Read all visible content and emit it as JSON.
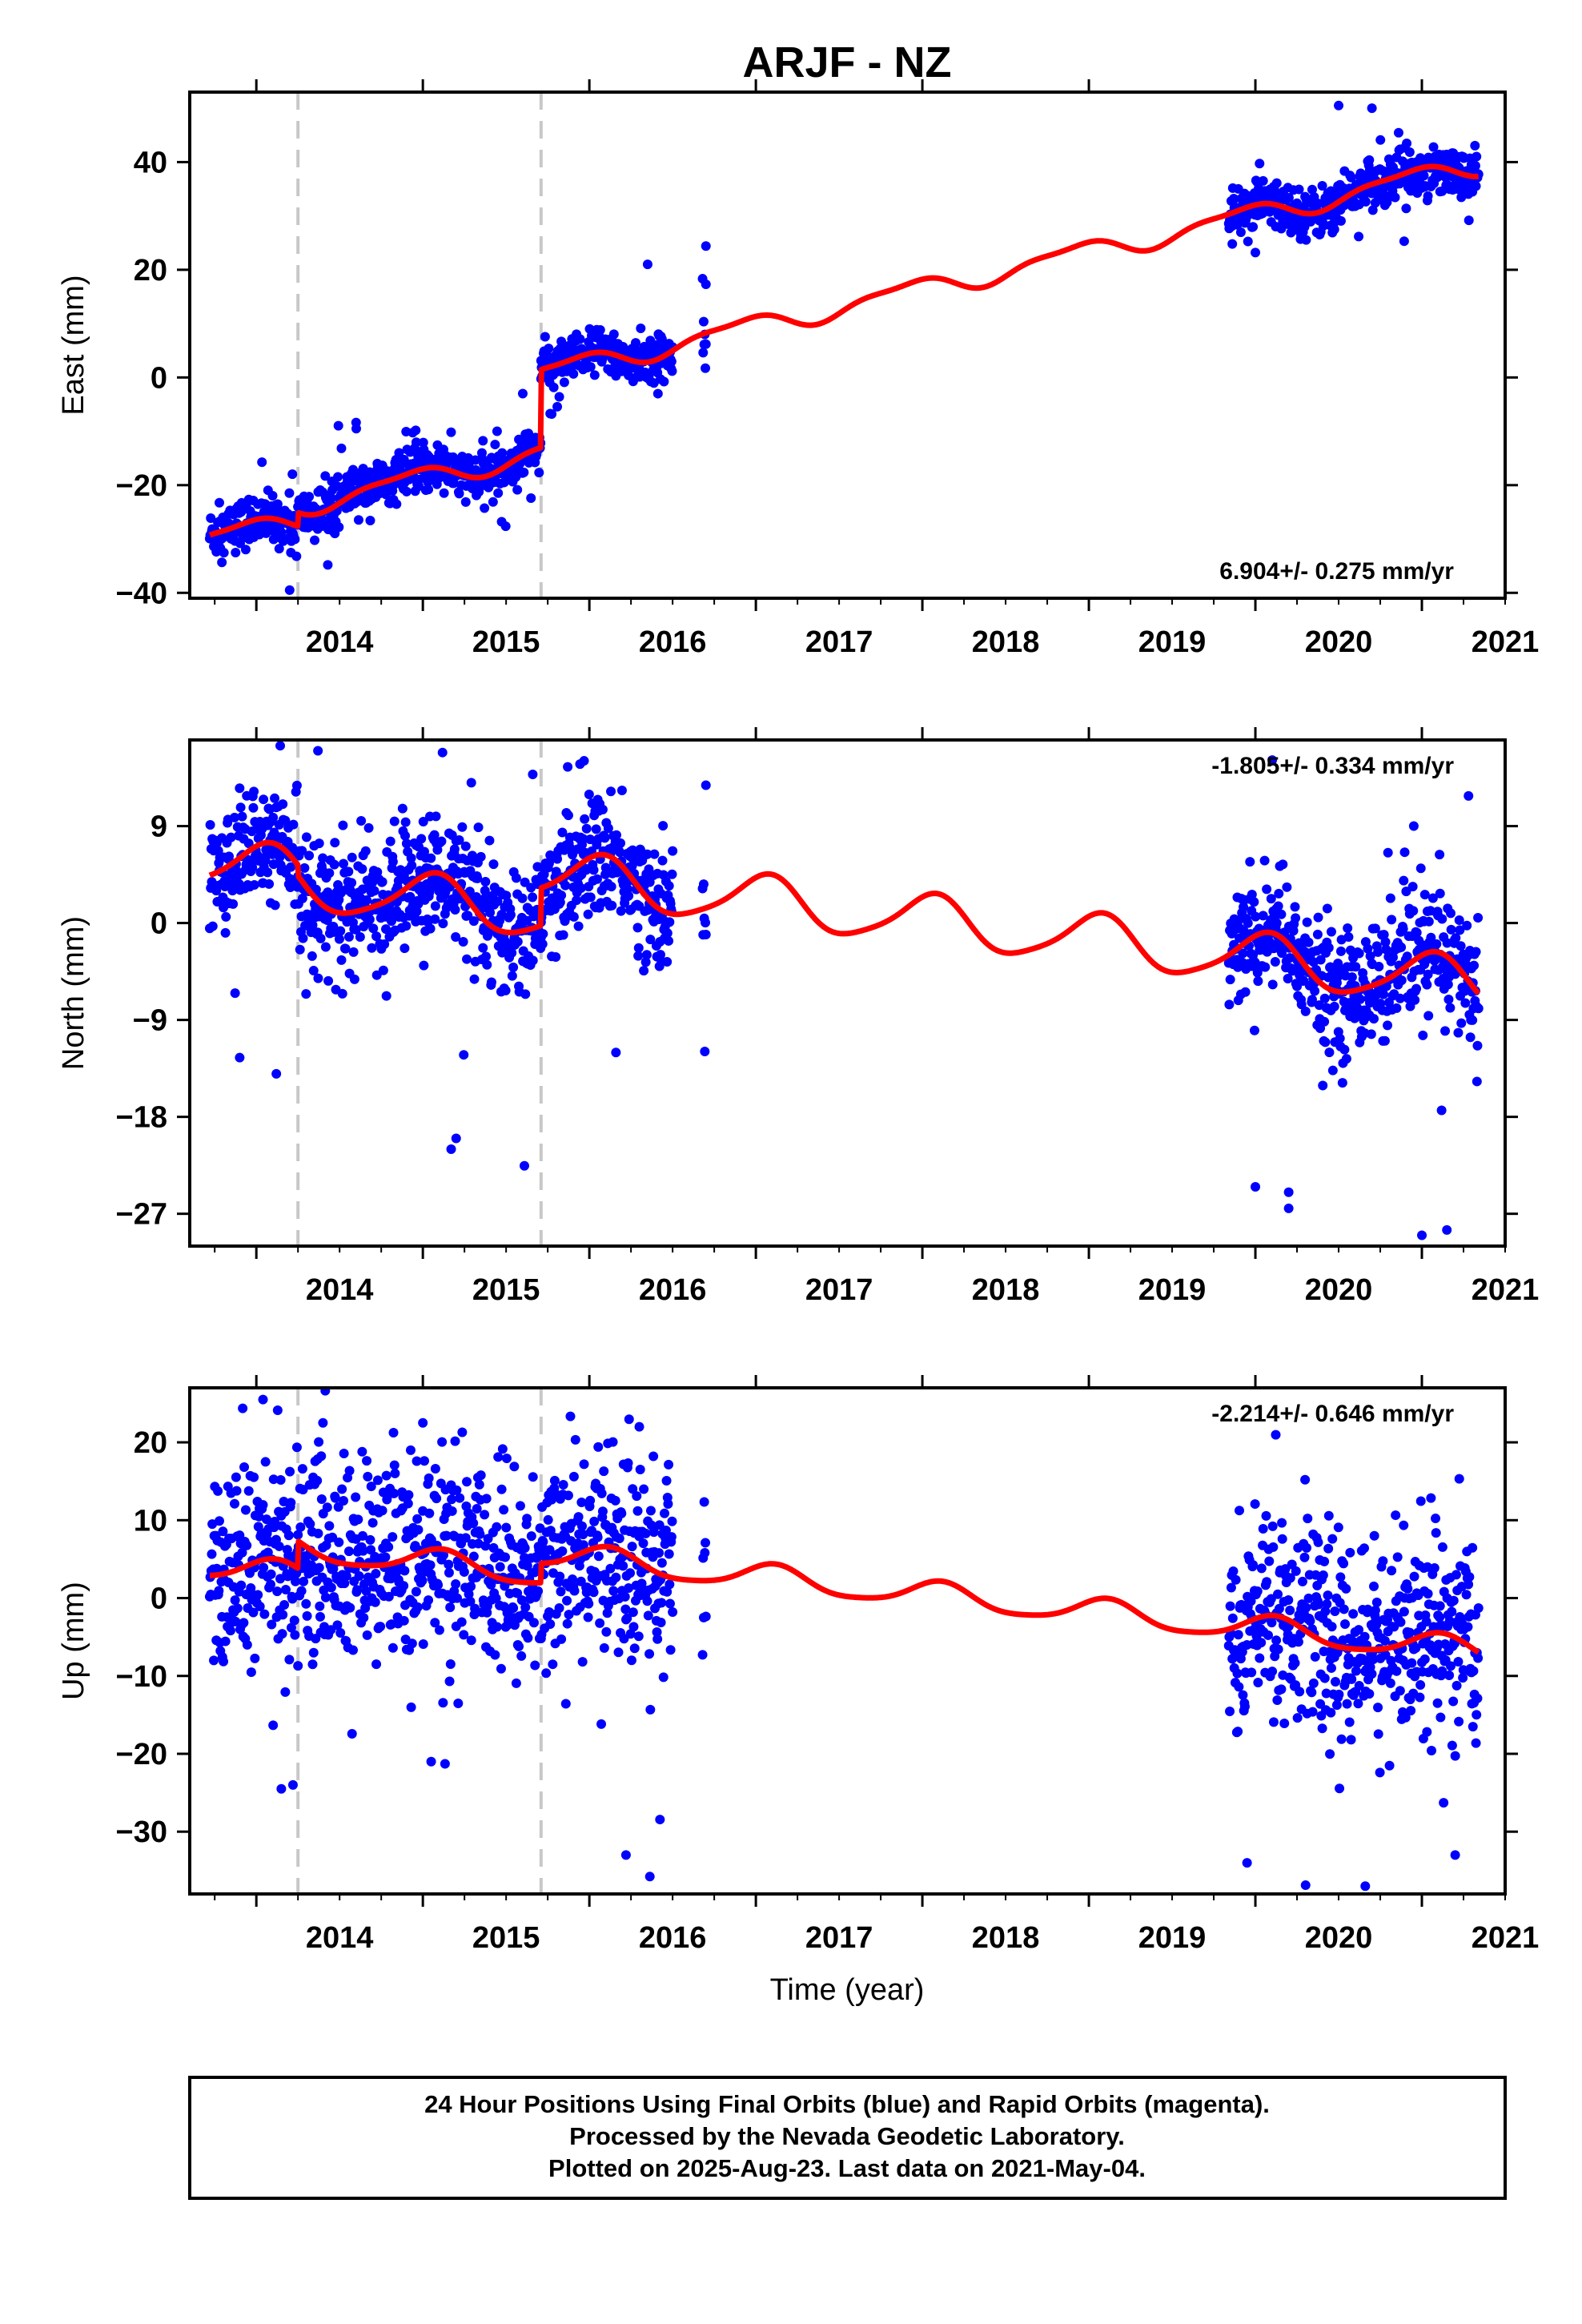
{
  "title": "ARJF - NZ",
  "colors": {
    "points": "#0000ff",
    "model": "#ff0000",
    "steps": "#c8c8c8",
    "frame": "#000000"
  },
  "footer": {
    "line1": "24 Hour Positions Using Final Orbits (blue) and Rapid Orbits (magenta).",
    "line2": "Processed by the Nevada Geodetic Laboratory.",
    "line3": "Plotted on 2025-Aug-23. Last data on 2021-May-04."
  },
  "xlabel": "Time (year)",
  "chart_data": [
    {
      "type": "scatter",
      "id": "east",
      "ylabel": "East (mm)",
      "rate_label": "6.904+/- 0.275 mm/yr",
      "rate_position": "bottom-right",
      "xlim": [
        2013.6,
        2021.5
      ],
      "ylim": [
        -41,
        53
      ],
      "x_ticks": [
        2014,
        2015,
        2016,
        2017,
        2018,
        2019,
        2020,
        2021
      ],
      "y_ticks": [
        -40,
        -20,
        0,
        20,
        40
      ],
      "step_epochs": [
        2014.25,
        2015.71
      ],
      "data_segments": [
        [
          2013.72,
          2014.25
        ],
        [
          2014.25,
          2015.71
        ],
        [
          2015.71,
          2016.5
        ],
        [
          2016.68,
          2016.7
        ],
        [
          2019.84,
          2021.34
        ]
      ],
      "model": {
        "base": -30.0,
        "t0": 2013.72,
        "rate": 6.904,
        "steps": [
          {
            "t": 2014.25,
            "size": 2.5
          },
          {
            "t": 2015.71,
            "size": 14.5
          }
        ],
        "annual_amp": 1.8,
        "annual_phase": 2.2,
        "semiannual_amp": 0.6,
        "semiannual_phase": 0.4,
        "range": [
          2013.72,
          2021.34
        ]
      },
      "scatter_sigma": 2.2,
      "outliers": [
        [
          2014.2,
          -39.5
        ],
        [
          2016.35,
          21
        ],
        [
          2016.7,
          24.4
        ],
        [
          2016.7,
          17.3
        ],
        [
          2020.0,
          23.2
        ],
        [
          2020.5,
          50.5
        ],
        [
          2020.7,
          50
        ],
        [
          2015.6,
          -3
        ],
        [
          2014.6,
          -9.5
        ]
      ]
    },
    {
      "type": "scatter",
      "id": "north",
      "ylabel": "North (mm)",
      "rate_label": "-1.805+/- 0.334 mm/yr",
      "rate_position": "top-right",
      "xlim": [
        2013.6,
        2021.5
      ],
      "ylim": [
        -30,
        17
      ],
      "x_ticks": [
        2014,
        2015,
        2016,
        2017,
        2018,
        2019,
        2020,
        2021
      ],
      "y_ticks": [
        -27,
        -18,
        -9,
        0,
        9
      ],
      "step_epochs": [
        2014.25,
        2015.71
      ],
      "data_segments": [
        [
          2013.72,
          2014.25
        ],
        [
          2014.25,
          2015.71
        ],
        [
          2015.71,
          2016.5
        ],
        [
          2016.68,
          2016.7
        ],
        [
          2019.84,
          2021.34
        ]
      ],
      "model": {
        "base": 5.5,
        "t0": 2013.72,
        "rate": -1.805,
        "steps": [
          {
            "t": 2014.25,
            "size": -1.0
          },
          {
            "t": 2015.71,
            "size": 3.5
          }
        ],
        "annual_amp": 2.3,
        "annual_phase": 1.2,
        "semiannual_amp": 0.4,
        "semiannual_phase": 0.0,
        "range": [
          2013.72,
          2021.34
        ]
      },
      "scatter_sigma": 2.8,
      "outliers": [
        [
          2014.37,
          16
        ],
        [
          2015.66,
          13.8
        ],
        [
          2015.87,
          14.5
        ],
        [
          2016.7,
          12.8
        ],
        [
          2021.28,
          11.8
        ],
        [
          2015.17,
          -21
        ],
        [
          2015.2,
          -20
        ],
        [
          2020.0,
          -24.5
        ],
        [
          2020.2,
          -25
        ],
        [
          2020.2,
          -26.5
        ],
        [
          2021.0,
          -29
        ],
        [
          2021.15,
          -28.5
        ],
        [
          2013.9,
          -12.5
        ],
        [
          2014.12,
          -14
        ]
      ]
    },
    {
      "type": "scatter",
      "id": "up",
      "ylabel": "Up (mm)",
      "rate_label": "-2.214+/- 0.646 mm/yr",
      "rate_position": "top-right",
      "xlim": [
        2013.6,
        2021.5
      ],
      "ylim": [
        -38,
        27
      ],
      "x_ticks": [
        2014,
        2015,
        2016,
        2017,
        2018,
        2019,
        2020,
        2021
      ],
      "y_ticks": [
        -30,
        -20,
        -10,
        0,
        10,
        20
      ],
      "step_epochs": [
        2014.25,
        2015.71
      ],
      "data_segments": [
        [
          2013.72,
          2014.25
        ],
        [
          2014.25,
          2015.71
        ],
        [
          2015.71,
          2016.5
        ],
        [
          2016.68,
          2016.7
        ],
        [
          2019.84,
          2021.34
        ]
      ],
      "model": {
        "base": 4.0,
        "t0": 2013.72,
        "rate": -2.214,
        "steps": [
          {
            "t": 2014.25,
            "size": 3.5
          },
          {
            "t": 2015.71,
            "size": 2.5
          }
        ],
        "annual_amp": 1.6,
        "annual_phase": 0.9,
        "semiannual_amp": 0.3,
        "semiannual_phase": 0.0,
        "range": [
          2013.72,
          2021.34
        ]
      },
      "scatter_sigma": 6.5,
      "outliers": [
        [
          2014.04,
          25.5
        ],
        [
          2014.15,
          -24.5
        ],
        [
          2014.22,
          -24
        ],
        [
          2015.05,
          -21
        ],
        [
          2016.22,
          -33
        ],
        [
          2019.95,
          -34
        ],
        [
          2020.66,
          -37
        ],
        [
          2021.2,
          -33
        ],
        [
          2014.4,
          22.5
        ],
        [
          2015.0,
          22.5
        ],
        [
          2016.3,
          22
        ]
      ]
    }
  ]
}
